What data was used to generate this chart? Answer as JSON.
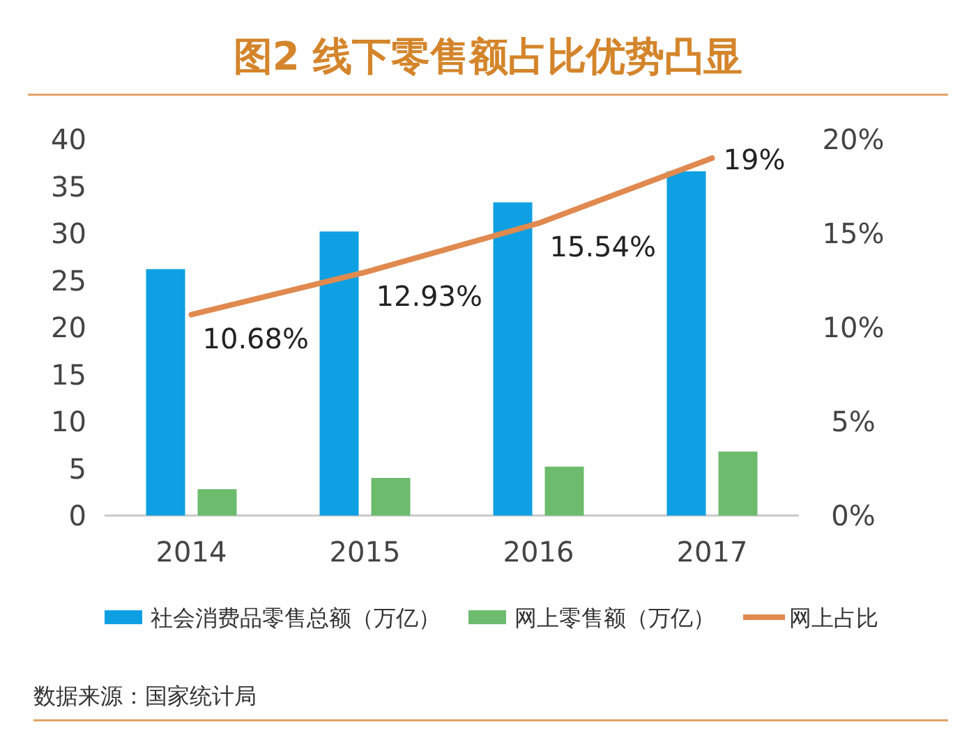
{
  "chart_data": {
    "type": "bar",
    "title": "图2 线下零售额占比优势凸显",
    "categories": [
      "2014",
      "2015",
      "2016",
      "2017"
    ],
    "series": [
      {
        "name": "社会消费品零售总额（万亿）",
        "color": "#0ea0e2",
        "values": [
          26.2,
          30.2,
          33.3,
          36.6
        ]
      },
      {
        "name": "网上零售额（万亿）",
        "color": "#6dbb6d",
        "values": [
          2.8,
          4.0,
          5.2,
          6.8
        ]
      },
      {
        "name": "网上占比",
        "type": "line",
        "axis": "y2",
        "color": "#e08a4f",
        "values": [
          10.68,
          12.93,
          15.54,
          19
        ],
        "value_labels": [
          "10.68%",
          "12.93%",
          "15.54%",
          "19%"
        ]
      }
    ],
    "ylim": [
      0,
      40
    ],
    "yticks": [
      0,
      5,
      10,
      15,
      20,
      25,
      30,
      35,
      40
    ],
    "y2lim": [
      0,
      20
    ],
    "y2ticks": [
      {
        "value": 0,
        "label": "0%"
      },
      {
        "value": 5,
        "label": "5%"
      },
      {
        "value": 10,
        "label": "10%"
      },
      {
        "value": 15,
        "label": "15%"
      },
      {
        "value": 20,
        "label": "20%"
      }
    ],
    "legend": "bottom",
    "grid": false,
    "annotations": [
      "数据来源：国家统计局"
    ]
  }
}
